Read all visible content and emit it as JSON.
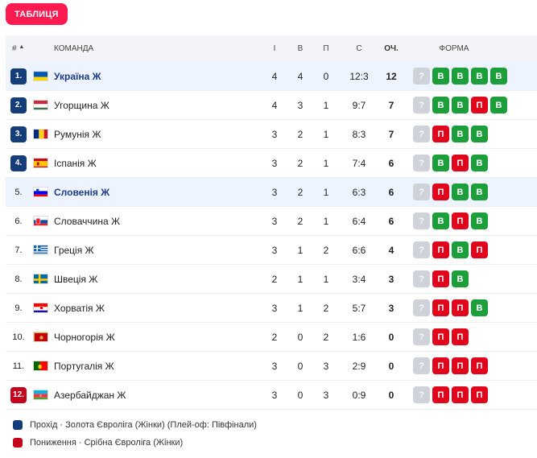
{
  "tab": {
    "label": "ТАБЛИЦЯ"
  },
  "header": {
    "pos": "#",
    "sort_arrow": "▲",
    "team": "КОМАНДА",
    "games": "І",
    "wins": "В",
    "losses": "П",
    "score": "С",
    "points": "ОЧ.",
    "form": "ФОРМА"
  },
  "colors": {
    "accent": "#ff1a4f",
    "promotion": "#143d7a",
    "relegation": "#c4031d",
    "win": "#1c9e3a",
    "loss": "#e2061c",
    "unknown": "#cfd3d9"
  },
  "rows": [
    {
      "pos": "1.",
      "zone": "blue",
      "team": "Україна Ж",
      "flag": "ukraine",
      "highlight": true,
      "g": "4",
      "w": "4",
      "l": "0",
      "score": "12:3",
      "pts": "12",
      "form": [
        "?",
        "В",
        "В",
        "В",
        "В"
      ]
    },
    {
      "pos": "2.",
      "zone": "blue",
      "team": "Угорщина Ж",
      "flag": "hungary",
      "highlight": false,
      "g": "4",
      "w": "3",
      "l": "1",
      "score": "9:7",
      "pts": "7",
      "form": [
        "?",
        "В",
        "В",
        "П",
        "В"
      ]
    },
    {
      "pos": "3.",
      "zone": "blue",
      "team": "Румунія Ж",
      "flag": "romania",
      "highlight": false,
      "g": "3",
      "w": "2",
      "l": "1",
      "score": "8:3",
      "pts": "7",
      "form": [
        "?",
        "П",
        "В",
        "В"
      ]
    },
    {
      "pos": "4.",
      "zone": "blue",
      "team": "Іспанія Ж",
      "flag": "spain",
      "highlight": false,
      "g": "3",
      "w": "2",
      "l": "1",
      "score": "7:4",
      "pts": "6",
      "form": [
        "?",
        "В",
        "П",
        "В"
      ]
    },
    {
      "pos": "5.",
      "zone": "none",
      "team": "Словенія Ж",
      "flag": "slovenia",
      "highlight": true,
      "g": "3",
      "w": "2",
      "l": "1",
      "score": "6:3",
      "pts": "6",
      "form": [
        "?",
        "П",
        "В",
        "В"
      ]
    },
    {
      "pos": "6.",
      "zone": "none",
      "team": "Словаччина Ж",
      "flag": "slovakia",
      "highlight": false,
      "g": "3",
      "w": "2",
      "l": "1",
      "score": "6:4",
      "pts": "6",
      "form": [
        "?",
        "В",
        "П",
        "В"
      ]
    },
    {
      "pos": "7.",
      "zone": "none",
      "team": "Греція Ж",
      "flag": "greece",
      "highlight": false,
      "g": "3",
      "w": "1",
      "l": "2",
      "score": "6:6",
      "pts": "4",
      "form": [
        "?",
        "П",
        "В",
        "П"
      ]
    },
    {
      "pos": "8.",
      "zone": "none",
      "team": "Швеція Ж",
      "flag": "sweden",
      "highlight": false,
      "g": "2",
      "w": "1",
      "l": "1",
      "score": "3:4",
      "pts": "3",
      "form": [
        "?",
        "П",
        "В"
      ]
    },
    {
      "pos": "9.",
      "zone": "none",
      "team": "Хорватія Ж",
      "flag": "croatia",
      "highlight": false,
      "g": "3",
      "w": "1",
      "l": "2",
      "score": "5:7",
      "pts": "3",
      "form": [
        "?",
        "П",
        "П",
        "В"
      ]
    },
    {
      "pos": "10.",
      "zone": "none",
      "team": "Чорногорія Ж",
      "flag": "montenegro",
      "highlight": false,
      "g": "2",
      "w": "0",
      "l": "2",
      "score": "1:6",
      "pts": "0",
      "form": [
        "?",
        "П",
        "П"
      ]
    },
    {
      "pos": "11.",
      "zone": "none",
      "team": "Португалія Ж",
      "flag": "portugal",
      "highlight": false,
      "g": "3",
      "w": "0",
      "l": "3",
      "score": "2:9",
      "pts": "0",
      "form": [
        "?",
        "П",
        "П",
        "П"
      ]
    },
    {
      "pos": "12.",
      "zone": "red",
      "team": "Азербайджан Ж",
      "flag": "azerbaijan",
      "highlight": false,
      "g": "3",
      "w": "0",
      "l": "3",
      "score": "0:9",
      "pts": "0",
      "form": [
        "?",
        "П",
        "П",
        "П"
      ]
    }
  ],
  "legend": [
    {
      "color": "#143d7a",
      "text": "Прохід · Золота Євроліга (Жінки) (Плей-оф: Півфінали)"
    },
    {
      "color": "#c4031d",
      "text": "Пониження · Срібна Євроліга (Жінки)"
    }
  ]
}
